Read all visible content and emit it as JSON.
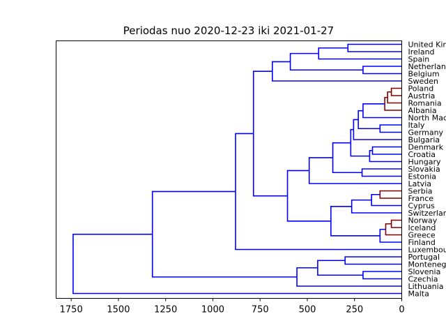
{
  "chart_data": {
    "type": "dendrogram",
    "title": "Periodas nuo 2020-12-23 iki 2021-01-27",
    "orientation": "left",
    "xlim": [
      1830,
      0
    ],
    "x_ticks": [
      1750,
      1500,
      1250,
      1000,
      750,
      500,
      250,
      0
    ],
    "x_tick_labels": [
      "1750",
      "1500",
      "1250",
      "1000",
      "750",
      "500",
      "250",
      "0"
    ],
    "leaves": [
      "United Kingdom",
      "Ireland",
      "Spain",
      "Netherlands",
      "Belgium",
      "Sweden",
      "Poland",
      "Austria",
      "Romania",
      "Albania",
      "North Macedonia",
      "Italy",
      "Germany",
      "Bulgaria",
      "Denmark",
      "Croatia",
      "Hungary",
      "Slovakia",
      "Estonia",
      "Latvia",
      "Serbia",
      "France",
      "Cyprus",
      "Switzerland",
      "Norway",
      "Iceland",
      "Greece",
      "Finland",
      "Luxembourg",
      "Portugal",
      "Montenegro",
      "Slovenia",
      "Czechia",
      "Lithuania",
      "Malta"
    ],
    "colors": {
      "above_threshold": "#0000ff",
      "cluster": "#800000"
    },
    "links": [
      {
        "a": "0",
        "b": "1",
        "h": 285,
        "c": "blue"
      },
      {
        "a": "L0",
        "b": "2",
        "h": 440,
        "c": "blue"
      },
      {
        "a": "3",
        "b": "4",
        "h": 205,
        "c": "blue"
      },
      {
        "a": "L1",
        "b": "L2",
        "h": 590,
        "c": "blue"
      },
      {
        "a": "L3",
        "b": "5",
        "h": 685,
        "c": "blue"
      },
      {
        "a": "6",
        "b": "7",
        "h": 55,
        "c": "red"
      },
      {
        "a": "L5",
        "b": "8",
        "h": 75,
        "c": "red"
      },
      {
        "a": "L6",
        "b": "9",
        "h": 90,
        "c": "red"
      },
      {
        "a": "L7",
        "b": "10",
        "h": 205,
        "c": "blue"
      },
      {
        "a": "11",
        "b": "12",
        "h": 115,
        "c": "blue"
      },
      {
        "a": "L8",
        "b": "L9",
        "h": 230,
        "c": "blue"
      },
      {
        "a": "L10",
        "b": "13",
        "h": 255,
        "c": "blue"
      },
      {
        "a": "14",
        "b": "15",
        "h": 155,
        "c": "blue"
      },
      {
        "a": "L12",
        "b": "16",
        "h": 170,
        "c": "blue"
      },
      {
        "a": "L11",
        "b": "L13",
        "h": 270,
        "c": "blue"
      },
      {
        "a": "17",
        "b": "18",
        "h": 210,
        "c": "blue"
      },
      {
        "a": "L14",
        "b": "L15",
        "h": 365,
        "c": "blue"
      },
      {
        "a": "L16",
        "b": "19",
        "h": 490,
        "c": "blue"
      },
      {
        "a": "20",
        "b": "21",
        "h": 115,
        "c": "red"
      },
      {
        "a": "L18",
        "b": "22",
        "h": 160,
        "c": "blue"
      },
      {
        "a": "L19",
        "b": "23",
        "h": 265,
        "c": "blue"
      },
      {
        "a": "24",
        "b": "25",
        "h": 55,
        "c": "red"
      },
      {
        "a": "L21",
        "b": "26",
        "h": 85,
        "c": "red"
      },
      {
        "a": "L22",
        "b": "27",
        "h": 115,
        "c": "blue"
      },
      {
        "a": "L20",
        "b": "L23",
        "h": 375,
        "c": "blue"
      },
      {
        "a": "L17",
        "b": "L24",
        "h": 605,
        "c": "blue"
      },
      {
        "a": "L4",
        "b": "L25",
        "h": 785,
        "c": "blue"
      },
      {
        "a": "L26",
        "b": "28",
        "h": 880,
        "c": "blue"
      },
      {
        "a": "29",
        "b": "30",
        "h": 300,
        "c": "blue"
      },
      {
        "a": "31",
        "b": "32",
        "h": 205,
        "c": "blue"
      },
      {
        "a": "L28",
        "b": "L29",
        "h": 445,
        "c": "blue"
      },
      {
        "a": "L30",
        "b": "33",
        "h": 555,
        "c": "blue"
      },
      {
        "a": "L27",
        "b": "L31",
        "h": 1320,
        "c": "blue"
      },
      {
        "a": "L32",
        "b": "34",
        "h": 1740,
        "c": "blue"
      }
    ]
  }
}
